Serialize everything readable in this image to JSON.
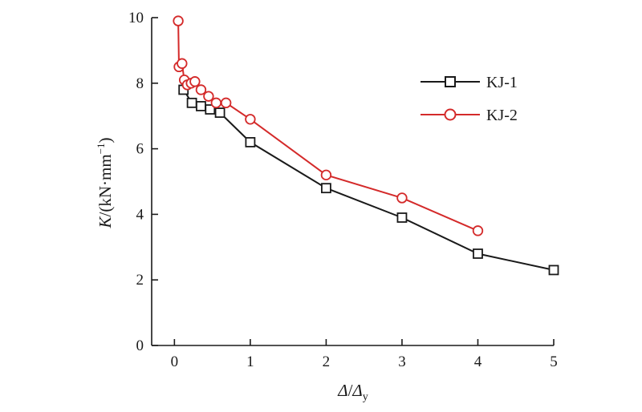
{
  "chart_data": {
    "type": "line",
    "title": "",
    "xlabel": {
      "symbol": "Δ",
      "sep": "/",
      "den_symbol": "Δ",
      "den_sub": "y"
    },
    "ylabel": {
      "symbol": "K",
      "rest": "/(kN·mm",
      "sup": "−1",
      "close": ")"
    },
    "xlim": [
      -0.3,
      5
    ],
    "ylim": [
      0,
      10
    ],
    "xticks": [
      0,
      1,
      2,
      3,
      4,
      5
    ],
    "xtick_labels": [
      "0",
      "1",
      "2",
      "3",
      "4",
      "5"
    ],
    "yticks": [
      0,
      2,
      4,
      6,
      8,
      10
    ],
    "ytick_labels": [
      "0",
      "2",
      "4",
      "6",
      "8",
      "10"
    ],
    "grid": false,
    "legend_position": "top-right",
    "series": [
      {
        "name": "KJ-1",
        "color": "#1a1a1a",
        "marker": "square",
        "points": [
          [
            0.12,
            7.8
          ],
          [
            0.23,
            7.4
          ],
          [
            0.35,
            7.3
          ],
          [
            0.47,
            7.2
          ],
          [
            0.6,
            7.1
          ],
          [
            1.0,
            6.2
          ],
          [
            2.0,
            4.8
          ],
          [
            3.0,
            3.9
          ],
          [
            4.0,
            2.8
          ],
          [
            5.0,
            2.3
          ]
        ]
      },
      {
        "name": "KJ-2",
        "color": "#d42a2a",
        "marker": "circle",
        "points": [
          [
            0.05,
            9.9
          ],
          [
            0.06,
            8.5
          ],
          [
            0.1,
            8.6
          ],
          [
            0.13,
            8.1
          ],
          [
            0.17,
            7.95
          ],
          [
            0.22,
            8.0
          ],
          [
            0.27,
            8.05
          ],
          [
            0.35,
            7.8
          ],
          [
            0.45,
            7.6
          ],
          [
            0.55,
            7.4
          ],
          [
            0.68,
            7.4
          ],
          [
            1.0,
            6.9
          ],
          [
            2.0,
            5.2
          ],
          [
            3.0,
            4.5
          ],
          [
            4.0,
            3.5
          ]
        ]
      }
    ]
  }
}
